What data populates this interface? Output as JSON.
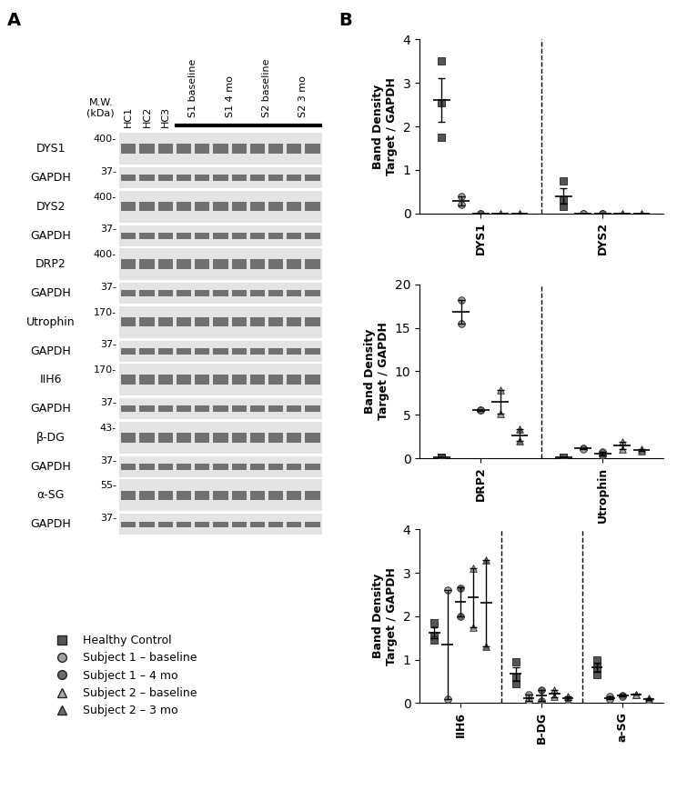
{
  "panel_labels": [
    "A",
    "B"
  ],
  "blot": {
    "mw_header": "M.W.\n(kDa)",
    "lanes": [
      "HC1",
      "HC2",
      "HC3"
    ],
    "groups": [
      "S1 baseline",
      "S1 4 mo",
      "S2 baseline",
      "S2 3 mo"
    ],
    "rows": [
      {
        "target": "DYS1",
        "mw": "400-"
      },
      {
        "target": "GAPDH",
        "mw": "37-"
      },
      {
        "target": "DYS2",
        "mw": "400-"
      },
      {
        "target": "GAPDH",
        "mw": "37-"
      },
      {
        "target": "DRP2",
        "mw": "400-"
      },
      {
        "target": "GAPDH",
        "mw": "37-"
      },
      {
        "target": "Utrophin",
        "mw": "170-"
      },
      {
        "target": "GAPDH",
        "mw": "37-"
      },
      {
        "target": "IIH6",
        "mw": "170-"
      },
      {
        "target": "GAPDH",
        "mw": "37-"
      },
      {
        "target": "β-DG",
        "mw": "43-"
      },
      {
        "target": "GAPDH",
        "mw": "37-"
      },
      {
        "target": "α-SG",
        "mw": "55-"
      },
      {
        "target": "GAPDH",
        "mw": "37-"
      }
    ]
  },
  "chart_data": [
    {
      "type": "scatter",
      "y_label": "Band Density\nTarget / GAPDH",
      "categories": [
        "DYS1",
        "DYS2"
      ],
      "ylim": [
        0,
        4
      ],
      "yticks": [
        0,
        1,
        2,
        3,
        4
      ],
      "series": [
        {
          "name": "Healthy Control",
          "color": "#555555",
          "marker": "square",
          "values": [
            [
              3.5,
              2.55,
              1.75
            ],
            [
              0.75,
              0.3,
              0.15
            ]
          ],
          "mean": [
            2.6,
            0.4
          ],
          "error": [
            0.5,
            0.18
          ]
        },
        {
          "name": "Subject 1 – baseline",
          "color": "#a0a0a0",
          "marker": "circle",
          "values": [
            [
              0.38,
              0.2
            ],
            [
              0,
              0
            ]
          ],
          "mean": [
            0.29,
            0
          ],
          "error": [
            0.1,
            0
          ]
        },
        {
          "name": "Subject 1 – 4 mo",
          "color": "#6a6a6a",
          "marker": "circle",
          "values": [
            [
              0,
              0
            ],
            [
              0,
              0
            ]
          ],
          "mean": [
            0,
            0
          ],
          "error": [
            0,
            0
          ]
        },
        {
          "name": "Subject 2 – baseline",
          "color": "#a8a8a8",
          "marker": "triangle",
          "values": [
            [
              0,
              0
            ],
            [
              0,
              0
            ]
          ],
          "mean": [
            0,
            0
          ],
          "error": [
            0,
            0
          ]
        },
        {
          "name": "Subject 2 – 3 mo",
          "color": "#707070",
          "marker": "triangle",
          "values": [
            [
              0,
              0
            ],
            [
              0,
              0
            ]
          ],
          "mean": [
            0,
            0
          ],
          "error": [
            0,
            0
          ]
        }
      ]
    },
    {
      "type": "scatter",
      "y_label": "Band Density\nTarget / GAPDH",
      "categories": [
        "DRP2",
        "Utrophin"
      ],
      "ylim": [
        0,
        20
      ],
      "yticks": [
        0,
        5,
        10,
        15,
        20
      ],
      "series": [
        {
          "name": "Healthy Control",
          "color": "#555555",
          "marker": "square",
          "values": [
            [
              0.1,
              0.15,
              0.05
            ],
            [
              0.05,
              0.1,
              0.08
            ]
          ],
          "mean": [
            0.1,
            0.08
          ],
          "error": [
            0.03,
            0.02
          ]
        },
        {
          "name": "Subject 1 – baseline",
          "color": "#a0a0a0",
          "marker": "circle",
          "values": [
            [
              18.2,
              15.5
            ],
            [
              1.2,
              1.1
            ]
          ],
          "mean": [
            16.85,
            1.15
          ],
          "error": [
            1.35,
            0.05
          ]
        },
        {
          "name": "Subject 1 – 4 mo",
          "color": "#6a6a6a",
          "marker": "circle",
          "values": [
            [
              5.5,
              5.5
            ],
            [
              0.3,
              0.7
            ]
          ],
          "mean": [
            5.5,
            0.5
          ],
          "error": [
            0.05,
            0.2
          ]
        },
        {
          "name": "Subject 2 – baseline",
          "color": "#a8a8a8",
          "marker": "triangle",
          "values": [
            [
              7.8,
              5.1
            ],
            [
              1.9,
              1.1
            ]
          ],
          "mean": [
            6.45,
            1.5
          ],
          "error": [
            1.35,
            0.4
          ]
        },
        {
          "name": "Subject 2 – 3 mo",
          "color": "#707070",
          "marker": "triangle",
          "values": [
            [
              3.3,
              2.0
            ],
            [
              1.1,
              0.8
            ]
          ],
          "mean": [
            2.65,
            0.95
          ],
          "error": [
            0.65,
            0.15
          ]
        }
      ]
    },
    {
      "type": "scatter",
      "y_label": "Band Density\nTarget / GAPDH",
      "legend": "lower left",
      "categories": [
        "IIH6",
        "B-DG",
        "a-SG"
      ],
      "ylim": [
        0,
        4
      ],
      "yticks": [
        0,
        1,
        2,
        3,
        4
      ],
      "series": [
        {
          "name": "Healthy Control",
          "color": "#555555",
          "marker": "square",
          "values": [
            [
              1.85,
              1.55,
              1.45
            ],
            [
              0.95,
              0.6,
              0.45
            ],
            [
              1.0,
              0.8,
              0.65
            ]
          ],
          "mean": [
            1.62,
            0.67,
            0.82
          ],
          "error": [
            0.12,
            0.15,
            0.1
          ]
        },
        {
          "name": "Subject 1 – baseline",
          "color": "#a0a0a0",
          "marker": "circle",
          "values": [
            [
              2.6,
              0.1
            ],
            [
              0.2,
              0.05
            ],
            [
              0.15,
              0.1
            ]
          ],
          "mean": [
            1.35,
            0.12,
            0.12
          ],
          "error": [
            1.25,
            0.07,
            0.03
          ]
        },
        {
          "name": "Subject 1 – 4 mo",
          "color": "#6a6a6a",
          "marker": "circle",
          "values": [
            [
              2.65,
              2.0
            ],
            [
              0.3,
              0.05
            ],
            [
              0.18,
              0.15
            ]
          ],
          "mean": [
            2.33,
            0.18,
            0.17
          ],
          "error": [
            0.33,
            0.12,
            0.02
          ]
        },
        {
          "name": "Subject 2 – baseline",
          "color": "#a8a8a8",
          "marker": "triangle",
          "values": [
            [
              3.1,
              1.75
            ],
            [
              0.3,
              0.15
            ],
            [
              0.2,
              0.2
            ]
          ],
          "mean": [
            2.43,
            0.22,
            0.2
          ],
          "error": [
            0.68,
            0.08,
            0.01
          ]
        },
        {
          "name": "Subject 2 – 3 mo",
          "color": "#707070",
          "marker": "triangle",
          "values": [
            [
              3.3,
              1.3
            ],
            [
              0.15,
              0.08
            ],
            [
              0.12,
              0.08
            ]
          ],
          "mean": [
            2.3,
            0.12,
            0.1
          ],
          "error": [
            1.0,
            0.04,
            0.02
          ]
        }
      ]
    }
  ]
}
